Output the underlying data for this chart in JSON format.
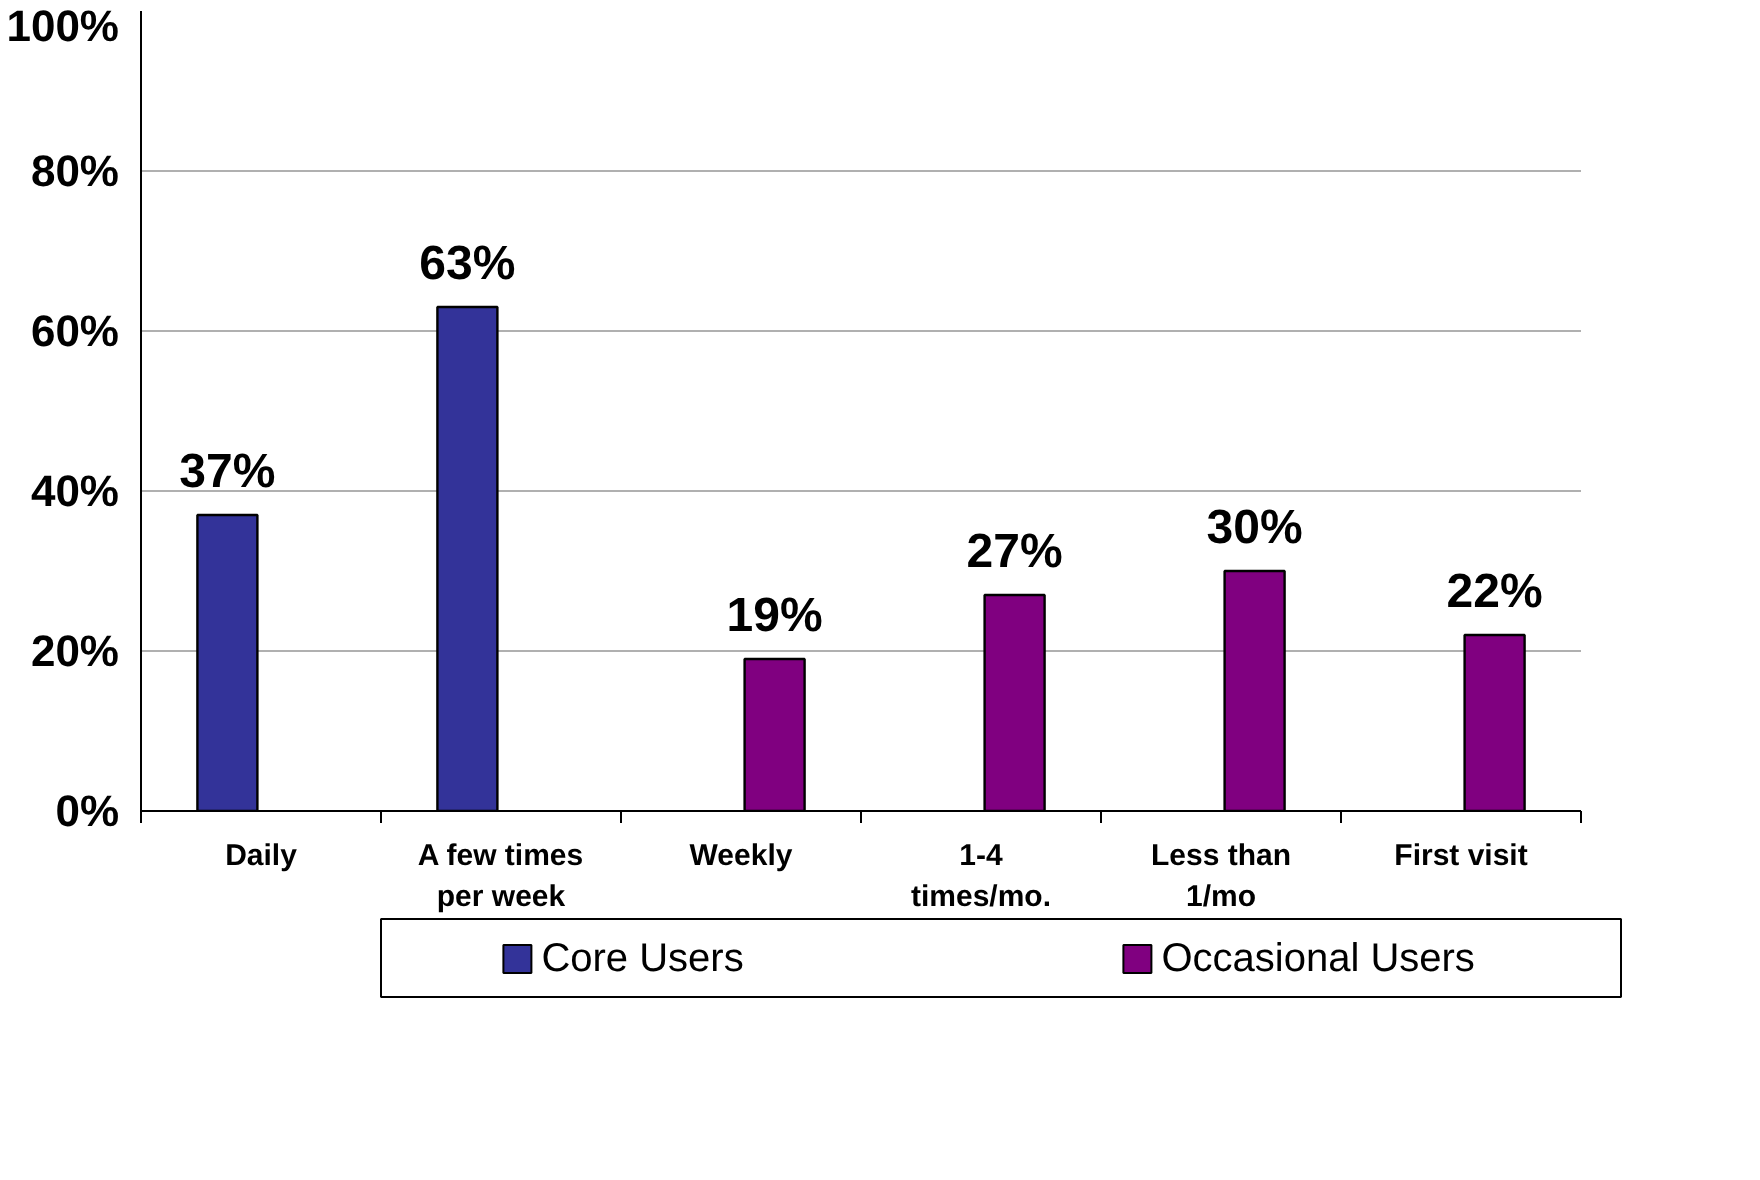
{
  "chart_data": {
    "type": "bar",
    "categories": [
      "Daily",
      "A few times\nper week",
      "Weekly",
      "1-4\ntimes/mo.",
      "Less than\n1/mo",
      "First visit"
    ],
    "series": [
      {
        "name": "Core Users",
        "color": "#333399",
        "values": [
          37,
          63,
          null,
          null,
          null,
          null
        ],
        "value_labels": [
          "37%",
          "63%",
          null,
          null,
          null,
          null
        ]
      },
      {
        "name": "Occasional Users",
        "color": "#800080",
        "values": [
          null,
          null,
          19,
          27,
          30,
          22
        ],
        "value_labels": [
          null,
          null,
          "19%",
          "27%",
          "30%",
          "22%"
        ]
      }
    ],
    "ylim": [
      0,
      100
    ],
    "yticks": [
      {
        "value": 0,
        "label": "0%"
      },
      {
        "value": 20,
        "label": "20%"
      },
      {
        "value": 40,
        "label": "40%"
      },
      {
        "value": 60,
        "label": "60%"
      },
      {
        "value": 80,
        "label": "80%"
      },
      {
        "value": 100,
        "label": "100%"
      }
    ],
    "grid": "y",
    "legend": "bottom"
  }
}
